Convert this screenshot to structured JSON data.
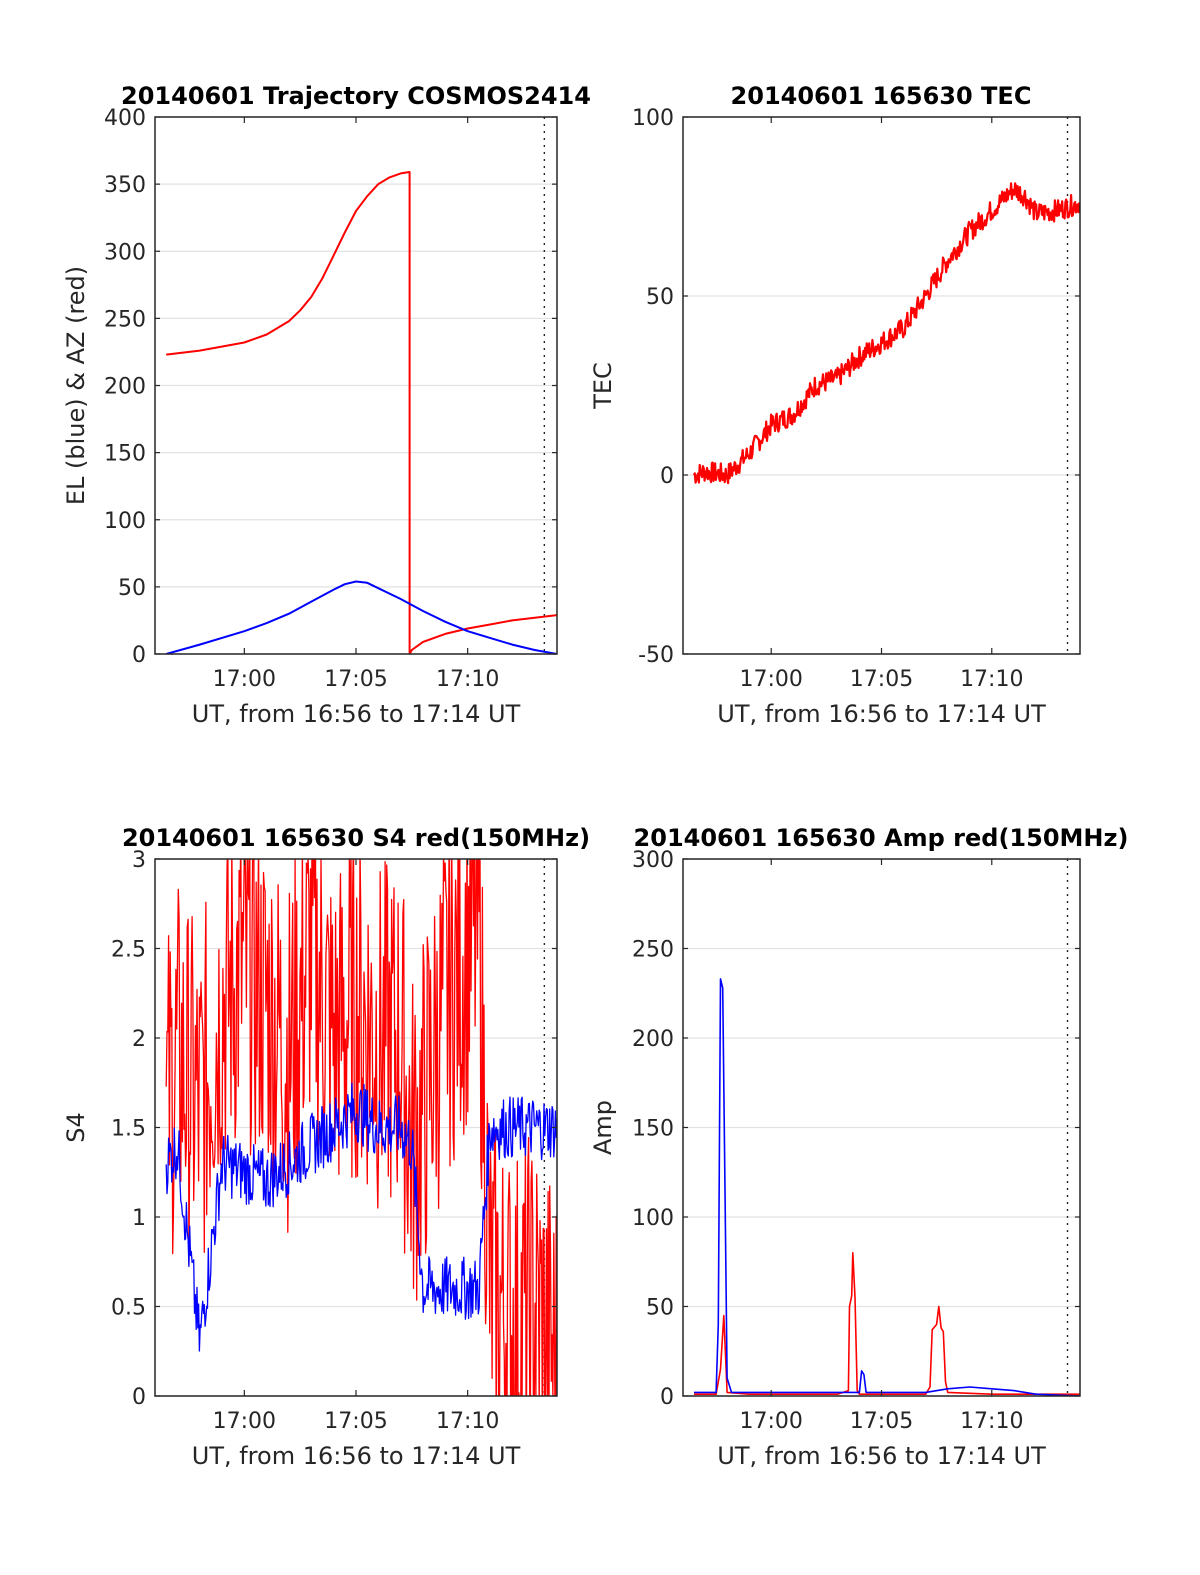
{
  "figure": {
    "background": "#ffffff"
  },
  "chart_data": [
    {
      "id": "trajectory",
      "type": "line",
      "title": "20140601 Trajectory COSMOS2414",
      "xlabel": "UT, from 16:56 to 17:14 UT",
      "ylabel": "EL (blue) & AZ (red)",
      "xlim": [
        "16:56",
        "17:14"
      ],
      "ylim": [
        0,
        400
      ],
      "xticks": [
        "17:00",
        "17:05",
        "17:10"
      ],
      "yticks": [
        0,
        50,
        100,
        150,
        200,
        250,
        300,
        350,
        400
      ],
      "grid": true,
      "series": [
        {
          "color": "#ff0000",
          "x": [
            "16:56.5",
            "16:58",
            "17:00",
            "17:01",
            "17:02",
            "17:02.5",
            "17:03",
            "17:03.5",
            "17:04",
            "17:04.5",
            "17:05",
            "17:05.5",
            "17:06",
            "17:06.5",
            "17:07",
            "17:07.4",
            "17:07.4",
            "17:07.5",
            "17:08",
            "17:09",
            "17:10",
            "17:11",
            "17:12",
            "17:13",
            "17:14"
          ],
          "y": [
            223,
            226,
            232,
            238,
            248,
            256,
            266,
            280,
            297,
            314,
            330,
            341,
            350,
            355,
            358,
            359,
            0,
            3,
            9,
            15,
            19,
            22,
            25,
            27,
            29
          ]
        },
        {
          "color": "#0000ff",
          "x": [
            "16:56.5",
            "16:58",
            "17:00",
            "17:01",
            "17:02",
            "17:03",
            "17:04",
            "17:04.5",
            "17:05",
            "17:05.5",
            "17:06",
            "17:07",
            "17:08",
            "17:09",
            "17:10",
            "17:11",
            "17:12",
            "17:13",
            "17:14"
          ],
          "y": [
            0,
            7,
            17,
            23,
            30,
            39,
            48,
            52,
            54,
            53,
            49,
            41,
            32,
            24,
            17,
            12,
            7,
            3,
            0
          ]
        }
      ]
    },
    {
      "id": "tec",
      "type": "line",
      "title": "20140601 165630 TEC",
      "xlabel": "UT, from 16:56 to 17:14 UT",
      "ylabel": "TEC",
      "xlim": [
        "16:56",
        "17:14"
      ],
      "ylim": [
        -50,
        100
      ],
      "xticks": [
        "17:00",
        "17:05",
        "17:10"
      ],
      "yticks": [
        -50,
        0,
        50,
        100
      ],
      "grid": true,
      "series": [
        {
          "color": "#ff0000",
          "noise": 1.0,
          "x": [
            "16:56.5",
            "16:57",
            "16:58",
            "16:59",
            "17:00",
            "17:01",
            "17:02",
            "17:03",
            "17:04",
            "17:05",
            "17:06",
            "17:07",
            "17:08",
            "17:09",
            "17:10",
            "17:11",
            "17:11.5",
            "17:12",
            "17:13",
            "17:14"
          ],
          "y": [
            0,
            1,
            0,
            6,
            14,
            17,
            25,
            27,
            33,
            37,
            41,
            50,
            60,
            68,
            74,
            80,
            78,
            73,
            74,
            76
          ]
        }
      ]
    },
    {
      "id": "s4",
      "type": "line",
      "title": "20140601 165630 S4 red(150MHz)",
      "xlabel": "UT, from 16:56 to 17:14 UT",
      "ylabel": "S4",
      "xlim": [
        "16:56",
        "17:14"
      ],
      "ylim": [
        0,
        3
      ],
      "xticks": [
        "17:00",
        "17:05",
        "17:10"
      ],
      "yticks": [
        0,
        0.5,
        1,
        1.5,
        2,
        2.5,
        3
      ],
      "grid": true,
      "series": [
        {
          "color": "#ff0000",
          "noise": 1.4,
          "x": [
            "16:56.5",
            "16:57",
            "16:58",
            "16:59",
            "17:00",
            "17:01",
            "17:02",
            "17:03",
            "17:04",
            "17:05",
            "17:06",
            "17:07",
            "17:07.5",
            "17:08",
            "17:09",
            "17:10",
            "17:10.5",
            "17:11",
            "17:12",
            "17:13",
            "17:14"
          ],
          "y": [
            1.6,
            1.9,
            1.6,
            2.2,
            2.4,
            2.2,
            1.9,
            2.5,
            2.0,
            2.2,
            2.0,
            2.0,
            1.4,
            1.6,
            2.2,
            2.5,
            2.6,
            0.6,
            0.4,
            0.5,
            0.2
          ]
        },
        {
          "color": "#0000ff",
          "noise": 0.25,
          "x": [
            "16:56.5",
            "16:57",
            "16:58",
            "16:59",
            "17:00",
            "17:01",
            "17:02",
            "17:03",
            "17:04",
            "17:05",
            "17:06",
            "17:07",
            "17:07.5",
            "17:08",
            "17:09",
            "17:10",
            "17:10.5",
            "17:11",
            "17:12",
            "17:13",
            "17:14"
          ],
          "y": [
            1.3,
            1.4,
            0.3,
            1.3,
            1.25,
            1.2,
            1.3,
            1.4,
            1.5,
            1.6,
            1.5,
            1.5,
            1.4,
            0.6,
            0.6,
            0.6,
            0.6,
            1.5,
            1.5,
            1.5,
            1.5
          ]
        }
      ]
    },
    {
      "id": "amp",
      "type": "line",
      "title": "20140601 165630 Amp red(150MHz)",
      "xlabel": "UT, from 16:56 to 17:14 UT",
      "ylabel": "Amp",
      "xlim": [
        "16:56",
        "17:14"
      ],
      "ylim": [
        0,
        300
      ],
      "xticks": [
        "17:00",
        "17:05",
        "17:10"
      ],
      "yticks": [
        0,
        50,
        100,
        150,
        200,
        250,
        300
      ],
      "grid": true,
      "series": [
        {
          "color": "#ff0000",
          "x": [
            "16:56.5",
            "16:57.5",
            "16:57.7",
            "16:57.85",
            "16:58",
            "16:59",
            "17:03",
            "17:03.5",
            "17:03.55",
            "17:03.65",
            "17:03.7",
            "17:03.8",
            "17:03.9",
            "17:04",
            "17:07",
            "17:07.2",
            "17:07.3",
            "17:07.5",
            "17:07.6",
            "17:07.7",
            "17:07.8",
            "17:07.9",
            "17:08",
            "17:10",
            "17:12",
            "17:14"
          ],
          "y": [
            1,
            1,
            15,
            45,
            2,
            1,
            1,
            3,
            50,
            56,
            80,
            55,
            3,
            1,
            1,
            5,
            37,
            40,
            50,
            38,
            36,
            8,
            2,
            1,
            1,
            1
          ]
        },
        {
          "color": "#0000ff",
          "x": [
            "16:56.5",
            "16:57",
            "16:57.5",
            "16:57.6",
            "16:57.7",
            "16:57.8",
            "16:57.9",
            "16:58",
            "16:58.2",
            "17:00",
            "17:03",
            "17:04",
            "17:04.1",
            "17:04.2",
            "17:04.3",
            "17:05",
            "17:07",
            "17:08",
            "17:09",
            "17:10",
            "17:11",
            "17:12",
            "17:14"
          ],
          "y": [
            2,
            2,
            2,
            40,
            233,
            228,
            120,
            10,
            2,
            2,
            2,
            2,
            14,
            12,
            2,
            2,
            2,
            4,
            5,
            4,
            3,
            1,
            0
          ]
        }
      ]
    }
  ]
}
